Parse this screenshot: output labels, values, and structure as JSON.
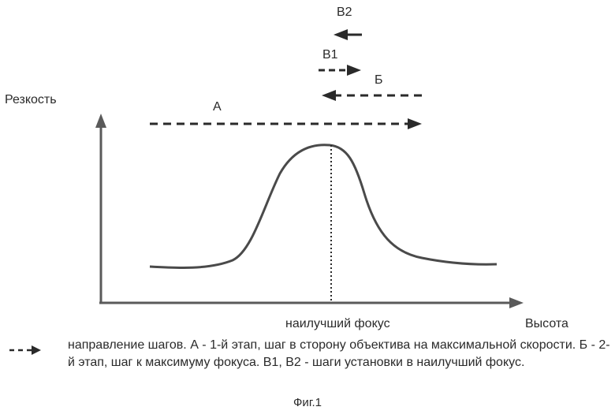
{
  "axes": {
    "ylabel": "Резкость",
    "xlabel": "Высота",
    "best_focus_label": "наилучший фокус"
  },
  "steps": {
    "a": "А",
    "b": "Б",
    "v1": "В1",
    "v2": "В2"
  },
  "legend": {
    "icon": "dashed-arrow-icon",
    "text": "направление шагов. А - 1-й этап, шаг в сторону объектива на максимальной скорости. Б - 2-й этап, шаг к максимуму фокуса. В1, В2 - шаги установки в наилучший фокус."
  },
  "caption": "Фиг.1",
  "colors": {
    "ink": "#2a2a2a",
    "axis": "#5a5a5a"
  }
}
